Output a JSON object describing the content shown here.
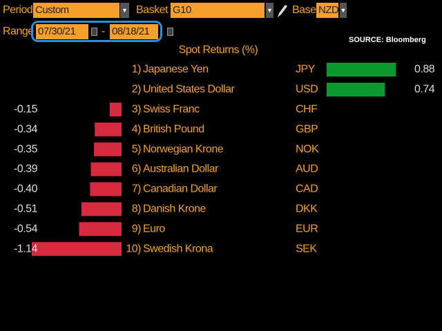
{
  "toolbar": {
    "period_label": "Period",
    "period_value": "Custom",
    "basket_label": "Basket",
    "basket_value": "G10",
    "base_label": "Base",
    "base_value": "NZD",
    "range_label": "Range",
    "start_date": "07/30/21",
    "separator": "-",
    "end_date": "08/18/21",
    "source": "SOURCE: Bloomberg"
  },
  "chart_data": {
    "type": "bar",
    "title": "Spot Returns (%)",
    "ranks": [
      "1)",
      "2)",
      "3)",
      "4)",
      "5)",
      "6)",
      "7)",
      "8)",
      "9)",
      "10)"
    ],
    "categories": [
      "Japanese Yen",
      "United States Dollar",
      "Swiss Franc",
      "British Pound",
      "Norwegian Krone",
      "Australian Dollar",
      "Canadian Dollar",
      "Danish Krone",
      "Euro",
      "Swedish Krona"
    ],
    "codes": [
      "JPY",
      "USD",
      "CHF",
      "GBP",
      "NOK",
      "AUD",
      "CAD",
      "DKK",
      "EUR",
      "SEK"
    ],
    "values": [
      0.88,
      0.74,
      -0.15,
      -0.34,
      -0.35,
      -0.39,
      -0.4,
      -0.51,
      -0.54,
      -1.14
    ],
    "value_labels": [
      "0.88",
      "0.74",
      "-0.15",
      "-0.34",
      "-0.35",
      "-0.39",
      "-0.40",
      "-0.51",
      "-0.54",
      "-1.14"
    ],
    "positive_color": "#0a9a2e",
    "negative_color": "#d82a3e"
  }
}
